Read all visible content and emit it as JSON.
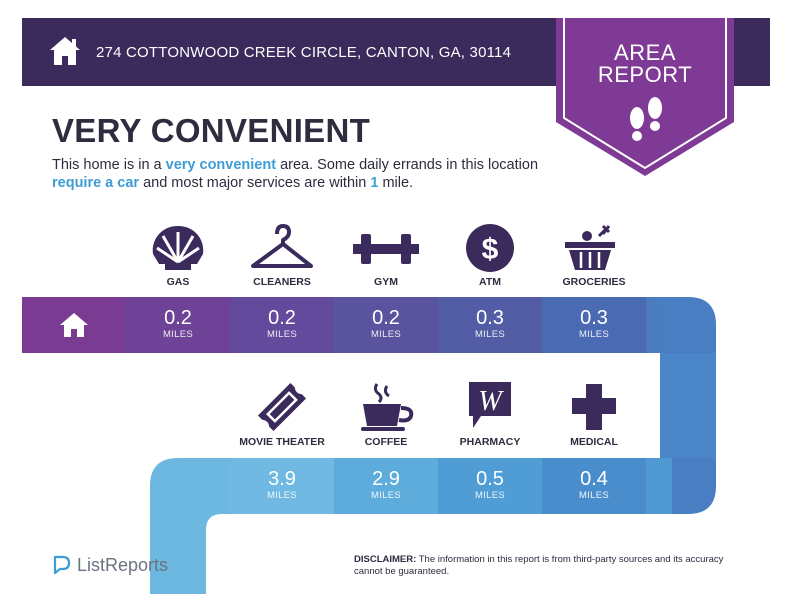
{
  "header": {
    "address": "274 COTTONWOOD CREEK CIRCLE, CANTON, GA, 30114",
    "icon": "home-icon"
  },
  "badge": {
    "line1": "AREA",
    "line2": "REPORT",
    "icon": "footprints-icon"
  },
  "rating": "VERY CONVENIENT",
  "description": {
    "p1": "This home is in a ",
    "h1": "very convenient",
    "p2": " area. Some daily errands in this location ",
    "h2": "require a car",
    "p3": " and most major services are within ",
    "h3": "1",
    "p4": " mile."
  },
  "row1": [
    {
      "label": "GAS",
      "icon": "shell-icon",
      "distance": "0.2",
      "unit": "MILES"
    },
    {
      "label": "CLEANERS",
      "icon": "hanger-icon",
      "distance": "0.2",
      "unit": "MILES"
    },
    {
      "label": "GYM",
      "icon": "dumbbell-icon",
      "distance": "0.2",
      "unit": "MILES"
    },
    {
      "label": "ATM",
      "icon": "dollar-icon",
      "distance": "0.3",
      "unit": "MILES"
    },
    {
      "label": "GROCERIES",
      "icon": "basket-icon",
      "distance": "0.3",
      "unit": "MILES"
    }
  ],
  "row2": [
    {
      "label": "MOVIE THEATER",
      "icon": "ticket-icon",
      "distance": "3.9",
      "unit": "MILES"
    },
    {
      "label": "COFFEE",
      "icon": "coffee-icon",
      "distance": "2.9",
      "unit": "MILES"
    },
    {
      "label": "PHARMACY",
      "icon": "walgreens-icon",
      "distance": "0.5",
      "unit": "MILES"
    },
    {
      "label": "MEDICAL",
      "icon": "cross-icon",
      "distance": "0.4",
      "unit": "MILES"
    }
  ],
  "footer": {
    "logo": "ListReports",
    "disclaimer_label": "DISCLAIMER:",
    "disclaimer_text": " The information in this report is from third-party sources and its accuracy cannot be guaranteed."
  },
  "colors": {
    "header": "#3b2a5c",
    "badge": "#7e3a94",
    "text": "#2e2c3e",
    "highlight": "#3d9dd6"
  }
}
